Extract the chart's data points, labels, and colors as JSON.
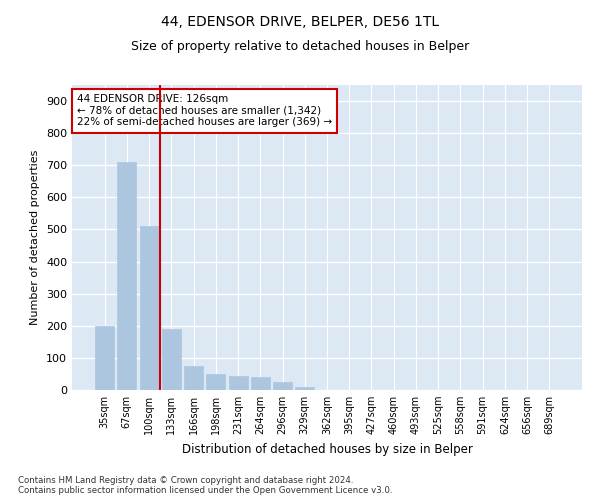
{
  "title1": "44, EDENSOR DRIVE, BELPER, DE56 1TL",
  "title2": "Size of property relative to detached houses in Belper",
  "xlabel": "Distribution of detached houses by size in Belper",
  "ylabel": "Number of detached properties",
  "categories": [
    "35sqm",
    "67sqm",
    "100sqm",
    "133sqm",
    "166sqm",
    "198sqm",
    "231sqm",
    "264sqm",
    "296sqm",
    "329sqm",
    "362sqm",
    "395sqm",
    "427sqm",
    "460sqm",
    "493sqm",
    "525sqm",
    "558sqm",
    "591sqm",
    "624sqm",
    "656sqm",
    "689sqm"
  ],
  "values": [
    200,
    710,
    510,
    190,
    75,
    50,
    45,
    40,
    25,
    10,
    0,
    0,
    0,
    0,
    0,
    0,
    0,
    0,
    0,
    0,
    0
  ],
  "bar_color": "#adc6e0",
  "bar_edgecolor": "#adc6e0",
  "vline_color": "#cc0000",
  "annotation_text": "44 EDENSOR DRIVE: 126sqm\n← 78% of detached houses are smaller (1,342)\n22% of semi-detached houses are larger (369) →",
  "annotation_box_color": "#cc0000",
  "annotation_fontsize": 7.5,
  "ylim": [
    0,
    950
  ],
  "yticks": [
    0,
    100,
    200,
    300,
    400,
    500,
    600,
    700,
    800,
    900
  ],
  "background_color": "#dde8f5",
  "grid_color": "#ffffff",
  "footer": "Contains HM Land Registry data © Crown copyright and database right 2024.\nContains public sector information licensed under the Open Government Licence v3.0.",
  "title1_fontsize": 10,
  "title2_fontsize": 9,
  "ylabel_fontsize": 8,
  "xlabel_fontsize": 8.5
}
